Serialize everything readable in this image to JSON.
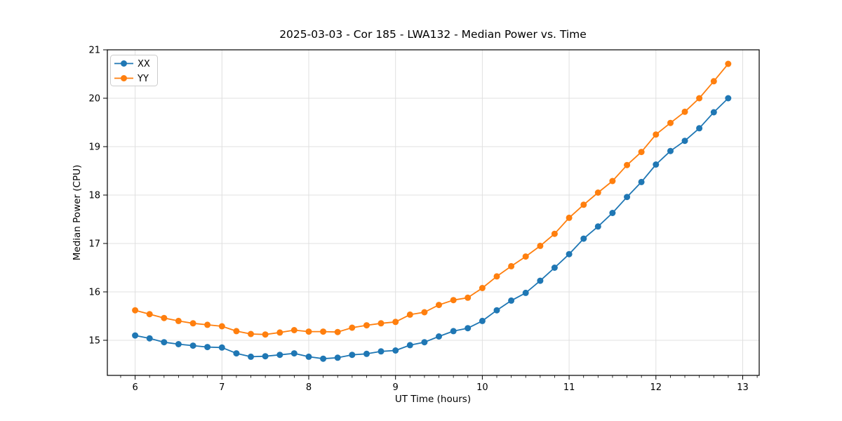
{
  "chart_data": {
    "type": "line",
    "title": "2025-03-03 - Cor 185 - LWA132 - Median Power vs. Time",
    "xlabel": "UT Time (hours)",
    "ylabel": "Median Power (CPU)",
    "xlim": [
      5.68,
      13.19
    ],
    "ylim": [
      14.275,
      21.0
    ],
    "x_ticks": [
      6,
      7,
      8,
      9,
      10,
      11,
      12,
      13
    ],
    "y_ticks": [
      15,
      16,
      17,
      18,
      19,
      20,
      21
    ],
    "x_minor_step": 0.1666667,
    "grid": true,
    "legend_position": "upper-left",
    "x": [
      6.0,
      6.167,
      6.333,
      6.5,
      6.667,
      6.833,
      7.0,
      7.167,
      7.333,
      7.5,
      7.667,
      7.833,
      8.0,
      8.167,
      8.333,
      8.5,
      8.667,
      8.833,
      9.0,
      9.167,
      9.333,
      9.5,
      9.667,
      9.833,
      10.0,
      10.167,
      10.333,
      10.5,
      10.667,
      10.833,
      11.0,
      11.167,
      11.333,
      11.5,
      11.667,
      11.833,
      12.0,
      12.167,
      12.333,
      12.5,
      12.667,
      12.833
    ],
    "series": [
      {
        "name": "XX",
        "color": "#1f77b4",
        "values": [
          15.1,
          15.04,
          14.96,
          14.92,
          14.89,
          14.86,
          14.85,
          14.73,
          14.66,
          14.67,
          14.7,
          14.73,
          14.66,
          14.62,
          14.64,
          14.7,
          14.72,
          14.77,
          14.79,
          14.9,
          14.96,
          15.08,
          15.19,
          15.25,
          15.4,
          15.62,
          15.82,
          15.98,
          16.23,
          16.5,
          16.78,
          17.1,
          17.35,
          17.63,
          17.96,
          18.27,
          18.63,
          18.91,
          19.12,
          19.38,
          19.71,
          20.0
        ]
      },
      {
        "name": "YY",
        "color": "#ff7f0e",
        "values": [
          15.62,
          15.54,
          15.46,
          15.4,
          15.35,
          15.32,
          15.29,
          15.19,
          15.13,
          15.12,
          15.16,
          15.21,
          15.18,
          15.18,
          15.17,
          15.26,
          15.31,
          15.35,
          15.38,
          15.53,
          15.58,
          15.73,
          15.83,
          15.88,
          16.08,
          16.32,
          16.53,
          16.73,
          16.95,
          17.2,
          17.53,
          17.8,
          18.05,
          18.29,
          18.62,
          18.89,
          19.25,
          19.49,
          19.72,
          20.0,
          20.35,
          20.71
        ]
      }
    ],
    "axis_color": "#000000",
    "grid_color": "#e0e0e0",
    "legend_border_color": "#cccccc"
  }
}
